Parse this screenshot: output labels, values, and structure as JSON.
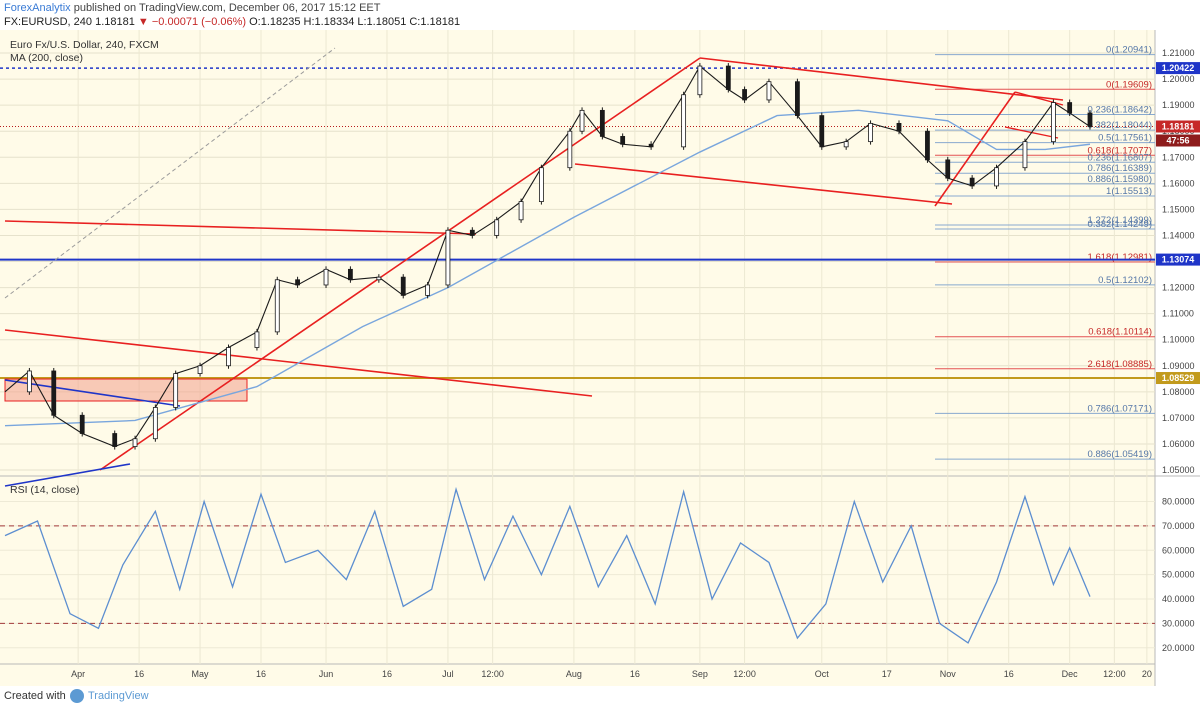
{
  "header": {
    "publisher": "ForexAnalytix",
    "published_text": "published on TradingView.com, December 06, 2017 15:12 EET",
    "symbol_line": "FX:EURUSD, 240 1.18181",
    "change": "−0.00071 (−0.06%)",
    "ohlc": "O:1.18235 H:1.18334 L:1.18051 C:1.18181"
  },
  "legend": {
    "title": "Euro Fx/U.S. Dollar, 240, FXCM",
    "ma": "MA (200, close)",
    "rsi": "RSI (14, close)"
  },
  "footer": {
    "made_with": "Created with",
    "brand": "TradingView"
  },
  "colors": {
    "background": "#fffbe8",
    "red_line": "#e82020",
    "blue_line": "#1f35c8",
    "ma_line": "#79a6dd",
    "fib_red": "#e35353",
    "fib_blue": "#88a9cf",
    "gold": "#c29a1c",
    "rsi": "#5c8ed0"
  },
  "chart_data": [
    {
      "type": "candlestick",
      "title": "Euro Fx/U.S. Dollar, 240, FXCM",
      "ylim": [
        1.05,
        1.215
      ],
      "y_ticks": [
        1.05,
        1.06,
        1.07,
        1.08,
        1.09,
        1.1,
        1.11,
        1.12,
        1.13,
        1.14,
        1.15,
        1.16,
        1.17,
        1.18,
        1.19,
        1.2,
        1.21
      ],
      "y_tick_labels": [
        "1.05000",
        "1.06000",
        "1.07000",
        "1.08000",
        "1.09000",
        "1.10000",
        "1.11000",
        "1.12000",
        "1.13000",
        "1.14000",
        "1.15000",
        "1.16000",
        "1.17000",
        "1.18000",
        "1.19000",
        "1.20000",
        "1.21000"
      ],
      "x_tick_labels": [
        "Apr",
        "16",
        "May",
        "16",
        "Jun",
        "16",
        "Jul",
        "12:00",
        "Aug",
        "16",
        "Sep",
        "12:00",
        "Oct",
        "17",
        "Nov",
        "16",
        "Dec",
        "12:00",
        "20"
      ],
      "x_tick_dates": [
        "2017-04-01",
        "2017-04-16",
        "2017-05-01",
        "2017-05-16",
        "2017-06-01",
        "2017-06-16",
        "2017-07-01",
        "2017-07-12",
        "2017-08-01",
        "2017-08-16",
        "2017-09-01",
        "2017-09-12",
        "2017-10-01",
        "2017-10-17",
        "2017-11-01",
        "2017-11-16",
        "2017-12-01",
        "2017-12-12",
        "2017-12-20"
      ],
      "price_path": {
        "dates": [
          "2017-03-14",
          "2017-03-20",
          "2017-03-26",
          "2017-04-02",
          "2017-04-10",
          "2017-04-15",
          "2017-04-20",
          "2017-04-25",
          "2017-05-01",
          "2017-05-08",
          "2017-05-15",
          "2017-05-20",
          "2017-05-25",
          "2017-06-01",
          "2017-06-07",
          "2017-06-14",
          "2017-06-20",
          "2017-06-26",
          "2017-07-01",
          "2017-07-07",
          "2017-07-13",
          "2017-07-19",
          "2017-07-24",
          "2017-07-31",
          "2017-08-03",
          "2017-08-08",
          "2017-08-13",
          "2017-08-20",
          "2017-08-28",
          "2017-09-01",
          "2017-09-08",
          "2017-09-12",
          "2017-09-18",
          "2017-09-25",
          "2017-10-01",
          "2017-10-07",
          "2017-10-13",
          "2017-10-20",
          "2017-10-27",
          "2017-11-01",
          "2017-11-07",
          "2017-11-13",
          "2017-11-20",
          "2017-11-27",
          "2017-12-01",
          "2017-12-06"
        ],
        "close": [
          1.08,
          1.088,
          1.071,
          1.064,
          1.059,
          1.062,
          1.074,
          1.087,
          1.09,
          1.097,
          1.103,
          1.123,
          1.121,
          1.127,
          1.123,
          1.124,
          1.117,
          1.121,
          1.142,
          1.14,
          1.146,
          1.153,
          1.166,
          1.18,
          1.188,
          1.178,
          1.175,
          1.174,
          1.194,
          1.205,
          1.196,
          1.192,
          1.199,
          1.186,
          1.174,
          1.176,
          1.183,
          1.18,
          1.169,
          1.162,
          1.159,
          1.166,
          1.176,
          1.191,
          1.187,
          1.1818
        ]
      },
      "ma200": {
        "dates": [
          "2017-03-14",
          "2017-04-15",
          "2017-05-15",
          "2017-06-10",
          "2017-07-01",
          "2017-08-01",
          "2017-09-01",
          "2017-09-20",
          "2017-10-10",
          "2017-11-01",
          "2017-11-13",
          "2017-11-25",
          "2017-12-06"
        ],
        "values": [
          1.067,
          1.069,
          1.082,
          1.105,
          1.12,
          1.147,
          1.172,
          1.186,
          1.188,
          1.184,
          1.173,
          1.173,
          1.175
        ]
      },
      "last_price": 1.18181,
      "countdown": "47:56",
      "horizontal_levels": [
        1.20422,
        1.13074,
        1.08529
      ],
      "fib_levels": [
        {
          "label": "0(1.20941)",
          "value": 1.20941
        },
        {
          "label": "0(1.19609)",
          "value": 1.19609
        },
        {
          "label": "0.236(1.18642)",
          "value": 1.18642
        },
        {
          "label": "0.382(1.18044)",
          "value": 1.18044
        },
        {
          "label": "0.5(1.17561)",
          "value": 1.17561
        },
        {
          "label": "0.618(1.17077)",
          "value": 1.17077
        },
        {
          "label": "0.236(1.16807)",
          "value": 1.16807
        },
        {
          "label": "0.786(1.16389)",
          "value": 1.16389
        },
        {
          "label": "0.886(1.15980)",
          "value": 1.1598
        },
        {
          "label": "1(1.15513)",
          "value": 1.15513
        },
        {
          "label": "1.272(1.14399)",
          "value": 1.14399
        },
        {
          "label": "0.382(1.14249)",
          "value": 1.14249
        },
        {
          "label": "1.618(1.12981)",
          "value": 1.12981
        },
        {
          "label": "0.5(1.12102)",
          "value": 1.12102
        },
        {
          "label": "0.618(1.10114)",
          "value": 1.10114
        },
        {
          "label": "2.618(1.08885)",
          "value": 1.08885
        },
        {
          "label": "0.786(1.07171)",
          "value": 1.07171
        },
        {
          "label": "0.886(1.05419)",
          "value": 1.05419
        }
      ],
      "axis_badges": [
        "1.20422",
        "1.18181",
        "47:56",
        "1.13074",
        "1.08529"
      ]
    },
    {
      "type": "line",
      "title": "RSI (14, close)",
      "ylim": [
        15,
        88
      ],
      "y_ticks": [
        20,
        30,
        40,
        50,
        60,
        70,
        80
      ],
      "y_tick_labels": [
        "20.0000",
        "30.0000",
        "40.0000",
        "50.0000",
        "60.0000",
        "70.0000",
        "80.0000"
      ],
      "levels": [
        70,
        30
      ],
      "series": [
        {
          "dates": [
            "2017-03-14",
            "2017-03-22",
            "2017-03-30",
            "2017-04-06",
            "2017-04-12",
            "2017-04-20",
            "2017-04-26",
            "2017-05-02",
            "2017-05-09",
            "2017-05-16",
            "2017-05-22",
            "2017-05-30",
            "2017-06-06",
            "2017-06-13",
            "2017-06-20",
            "2017-06-27",
            "2017-07-03",
            "2017-07-10",
            "2017-07-17",
            "2017-07-24",
            "2017-07-31",
            "2017-08-07",
            "2017-08-14",
            "2017-08-21",
            "2017-08-28",
            "2017-09-04",
            "2017-09-11",
            "2017-09-18",
            "2017-09-25",
            "2017-10-02",
            "2017-10-09",
            "2017-10-16",
            "2017-10-23",
            "2017-10-30",
            "2017-11-06",
            "2017-11-13",
            "2017-11-20",
            "2017-11-27",
            "2017-12-01",
            "2017-12-06"
          ],
          "values": [
            66,
            72,
            34,
            28,
            54,
            76,
            44,
            80,
            45,
            83,
            55,
            60,
            48,
            76,
            37,
            44,
            85,
            48,
            74,
            50,
            78,
            45,
            66,
            38,
            84,
            40,
            63,
            55,
            24,
            38,
            80,
            47,
            70,
            30,
            22,
            47,
            82,
            46,
            61,
            41
          ]
        }
      ]
    }
  ]
}
